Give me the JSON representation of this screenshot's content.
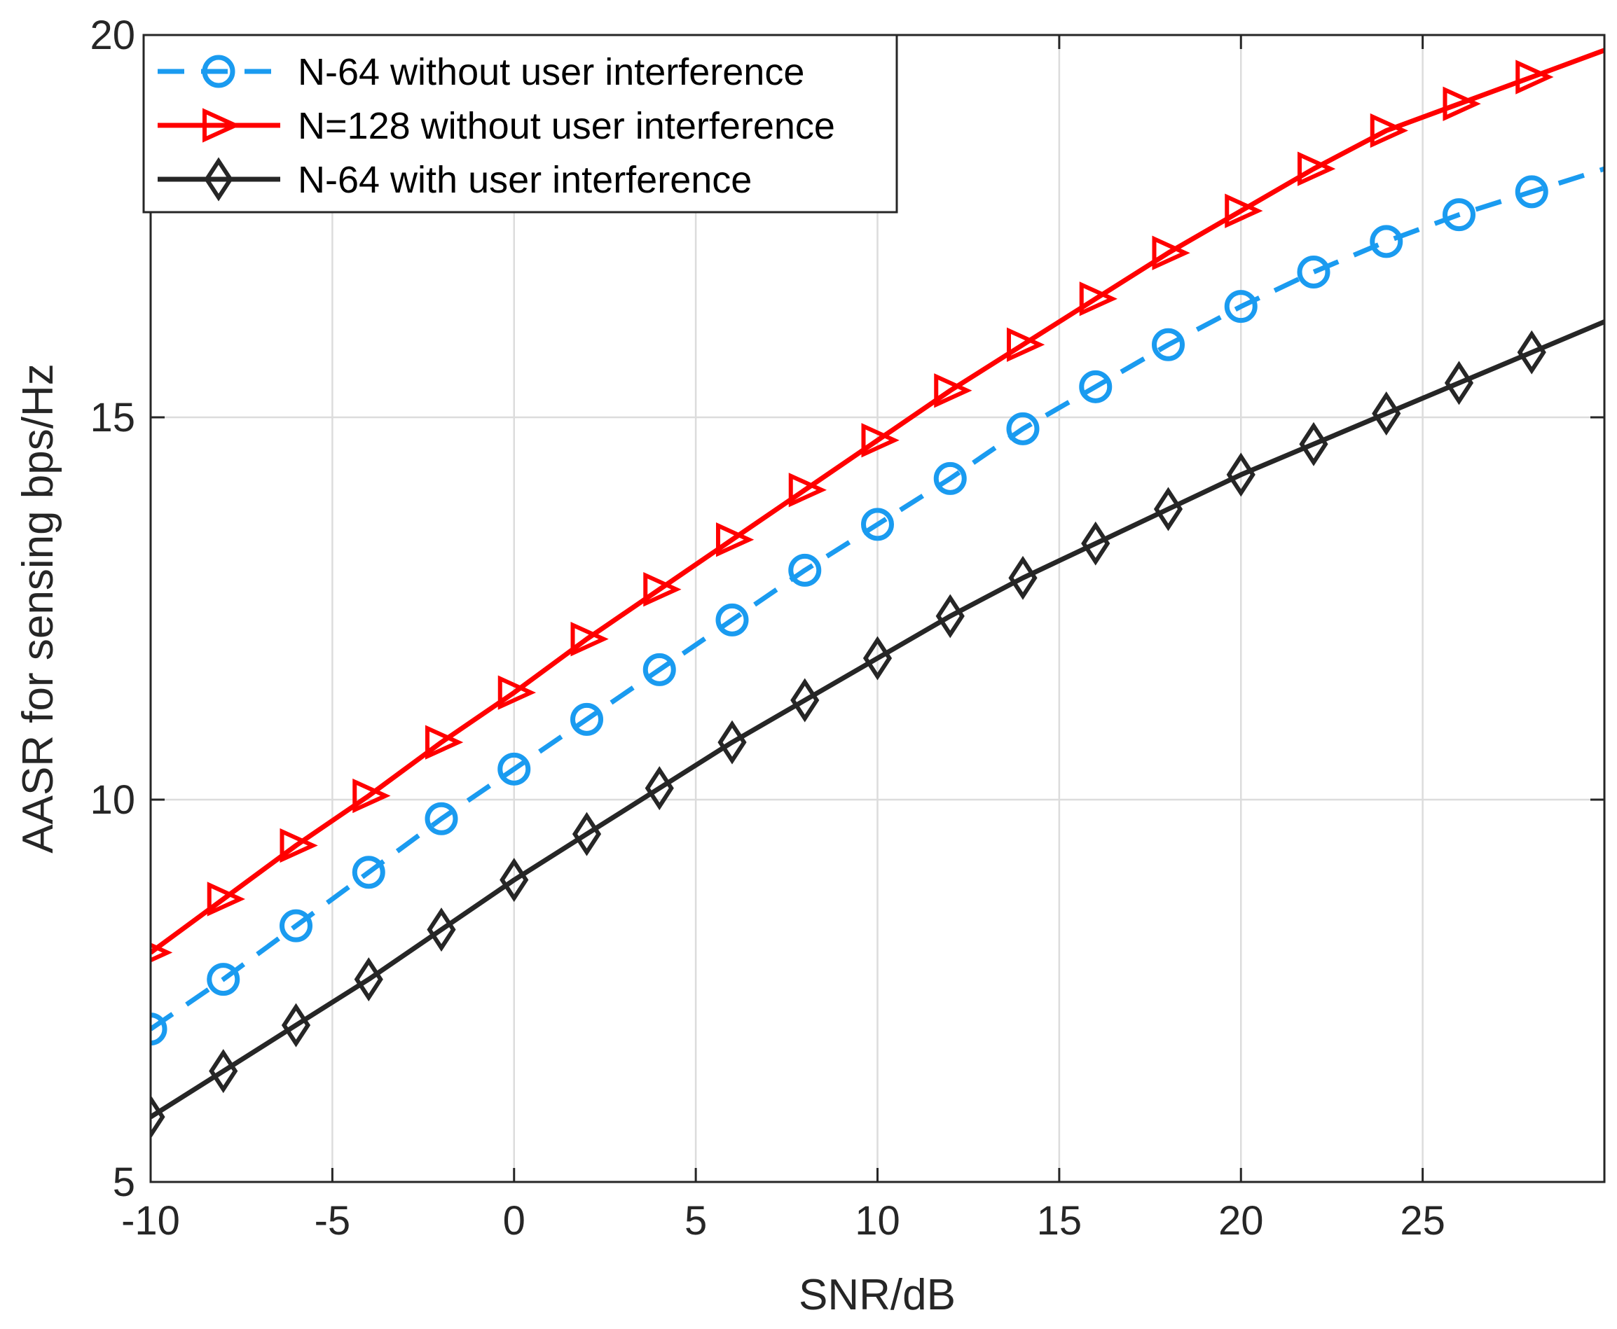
{
  "chart_data": {
    "type": "line",
    "title": "",
    "xlabel": "SNR/dB",
    "ylabel": "AASR for sensing bps/Hz",
    "xlim": [
      -10,
      30
    ],
    "ylim": [
      5,
      20
    ],
    "xticks": [
      -10,
      -5,
      0,
      5,
      10,
      15,
      20,
      25
    ],
    "yticks": [
      5,
      10,
      15,
      20
    ],
    "xtick_labels": [
      "-10",
      "-5",
      "0",
      "5",
      "10",
      "15",
      "20",
      "25"
    ],
    "ytick_labels": [
      "5",
      "10",
      "15",
      "20"
    ],
    "grid": true,
    "legend_position": "top-left",
    "x": [
      -10,
      -8,
      -6,
      -4,
      -2,
      0,
      2,
      4,
      6,
      8,
      10,
      12,
      14,
      16,
      18,
      20,
      22,
      24,
      26,
      28,
      30
    ],
    "series": [
      {
        "name": "N-64  without user interference",
        "color": "#1a9bf0",
        "line_style": "dashed",
        "marker": "circle",
        "values": [
          7.0,
          7.65,
          8.35,
          9.05,
          9.75,
          10.4,
          11.05,
          11.7,
          12.35,
          13.0,
          13.6,
          14.2,
          14.85,
          15.4,
          15.95,
          16.45,
          16.9,
          17.3,
          17.65,
          17.95,
          18.25
        ]
      },
      {
        "name": "N=128  without user interference",
        "color": "#ff0000",
        "line_style": "solid",
        "marker": "triangle-right",
        "values": [
          8.0,
          8.7,
          9.4,
          10.05,
          10.75,
          11.4,
          12.1,
          12.75,
          13.4,
          14.05,
          14.7,
          15.35,
          15.95,
          16.55,
          17.15,
          17.7,
          18.25,
          18.75,
          19.1,
          19.45,
          19.8
        ]
      },
      {
        "name": "N-64 with user interference",
        "color": "#262626",
        "line_style": "solid",
        "marker": "diamond",
        "values": [
          5.85,
          6.45,
          7.05,
          7.65,
          8.3,
          8.95,
          9.55,
          10.15,
          10.75,
          11.3,
          11.85,
          12.4,
          12.9,
          13.35,
          13.8,
          14.25,
          14.65,
          15.05,
          15.45,
          15.85,
          16.25
        ]
      }
    ]
  }
}
